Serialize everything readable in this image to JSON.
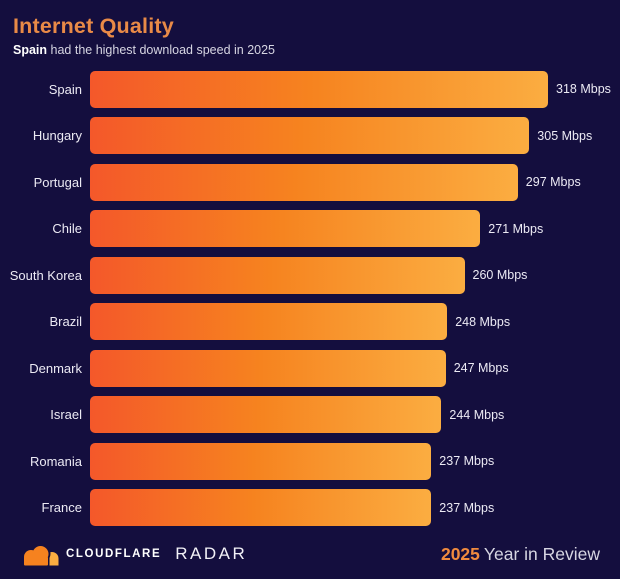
{
  "header": {
    "title": "Internet Quality",
    "subtitle_bold": "Spain",
    "subtitle_rest": " had the highest download speed in 2025"
  },
  "chart_data": {
    "type": "bar",
    "orientation": "horizontal",
    "title": "Internet Quality",
    "subtitle": "Spain had the highest download speed in 2025",
    "unit": "Mbps",
    "categories": [
      "Spain",
      "Hungary",
      "Portugal",
      "Chile",
      "South Korea",
      "Brazil",
      "Denmark",
      "Israel",
      "Romania",
      "France"
    ],
    "values": [
      318,
      305,
      297,
      271,
      260,
      248,
      247,
      244,
      237,
      237
    ],
    "xlim": [
      0,
      318
    ],
    "grid": false,
    "legend": false,
    "value_label_position": "right-of-bar",
    "category_label_position": "left-of-bar"
  },
  "footer": {
    "brand": "CLOUDFLARE",
    "product": "RADAR",
    "year": "2025",
    "tagline": "Year in Review"
  },
  "colors": {
    "background": "#140e3e",
    "title": "#e98a47",
    "bar_gradient_start": "#f4582a",
    "bar_gradient_mid": "#f6831f",
    "bar_gradient_end": "#fbad41",
    "text_primary": "#ffffff",
    "text_secondary": "#d6d5e2",
    "label_color": "#eceaf4",
    "footer_year": "#f08b3e",
    "logo_orange": "#f6821f",
    "logo_light_orange": "#fbad41"
  }
}
